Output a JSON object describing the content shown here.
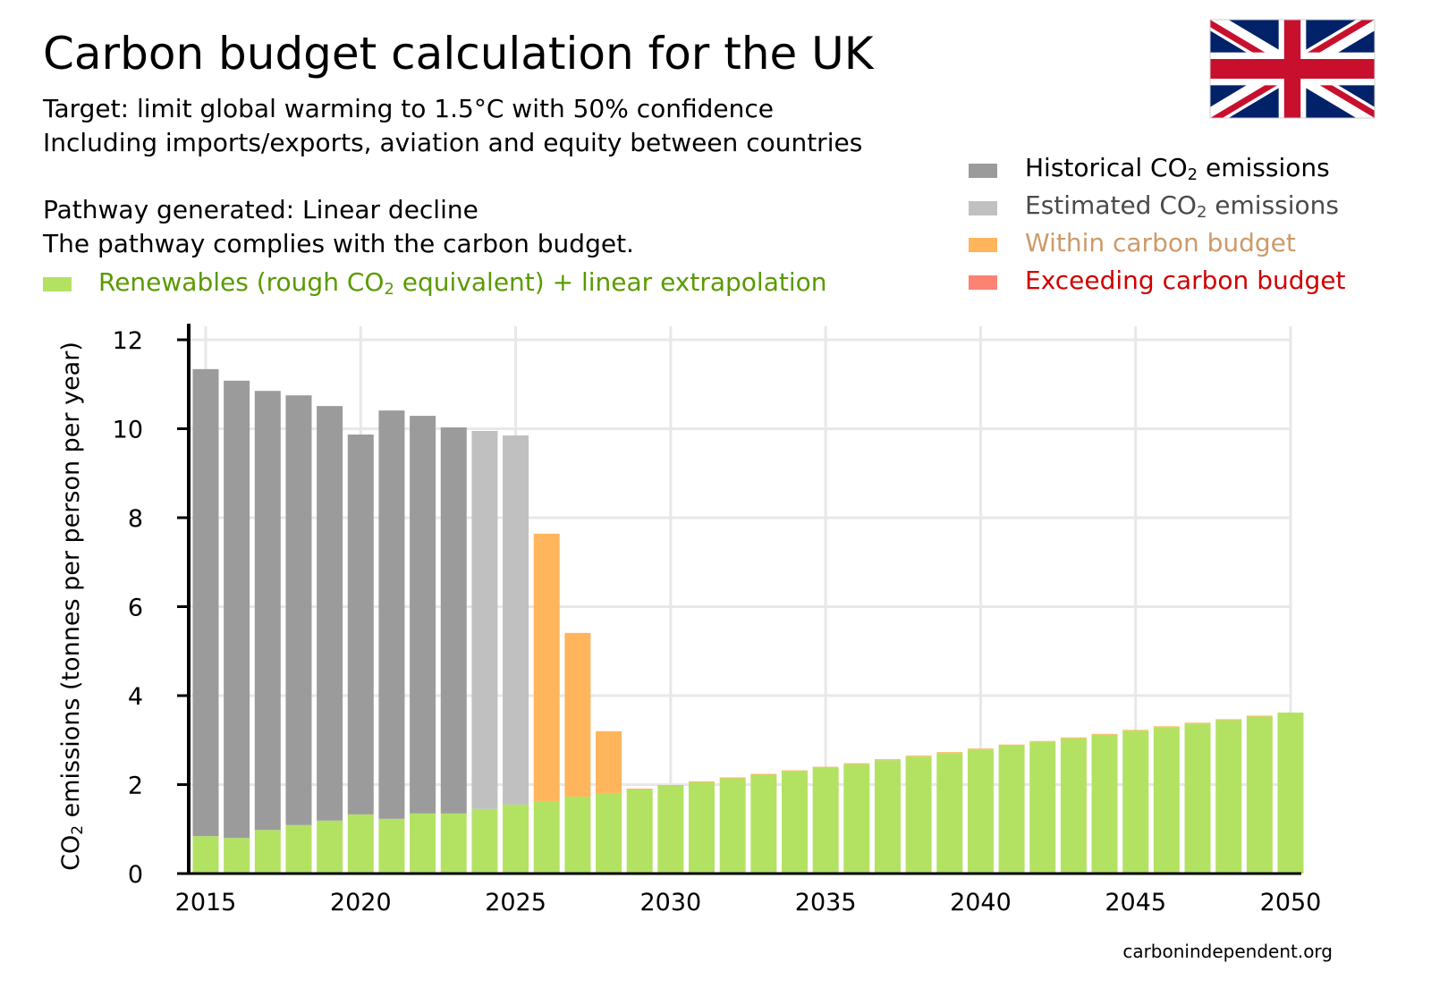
{
  "title": "Carbon budget calculation for the UK",
  "subtitle_1": "Target: limit global warming to 1.5°C with 50% confidence",
  "subtitle_2": "Including imports/exports, aviation and equity between countries",
  "pathway": "Pathway generated: Linear decline",
  "compliance": "The pathway complies with the carbon budget.",
  "footer": "carbonindependent.org",
  "colors": {
    "historical": "#9b9b9b",
    "estimated": "#c0c0c0",
    "within": "#feb55c",
    "exceeding": "#fc8272",
    "renewables": "#b3e263",
    "renewables_text": "#5a9a00",
    "within_text": "#cd9a6a",
    "exceeding_text": "#d00000",
    "estimated_text": "#4a4a4a"
  },
  "legend": {
    "historical": {
      "pre": "Historical CO",
      "sub": "2",
      "post": " emissions"
    },
    "estimated": {
      "pre": "Estimated CO",
      "sub": "2",
      "post": " emissions"
    },
    "within": "Within carbon budget",
    "exceeding": "Exceeding carbon budget",
    "renewables": {
      "pre": "Renewables (rough CO",
      "sub": "2",
      "post": " equivalent) + linear extrapolation"
    }
  },
  "chart_data": {
    "type": "bar",
    "stacked": true,
    "title": "Carbon budget calculation for the UK",
    "xlabel": "",
    "ylabel": {
      "pre": "CO",
      "sub": "2",
      "post": " emissions (tonnes per person per year)"
    },
    "ylim": [
      0,
      12
    ],
    "yticks": [
      "0",
      "2",
      "4",
      "6",
      "8",
      "10",
      "12"
    ],
    "xticks": [
      "2015",
      "2020",
      "2025",
      "2030",
      "2035",
      "2040",
      "2045",
      "2050"
    ],
    "grid": true,
    "legend_position": "top-right",
    "years": [
      2015,
      2016,
      2017,
      2018,
      2019,
      2020,
      2021,
      2022,
      2023,
      2024,
      2025,
      2026,
      2027,
      2028,
      2029,
      2030,
      2031,
      2032,
      2033,
      2034,
      2035,
      2036,
      2037,
      2038,
      2039,
      2040,
      2041,
      2042,
      2043,
      2044,
      2045,
      2046,
      2047,
      2048,
      2049,
      2050
    ],
    "series": [
      {
        "name": "Renewables",
        "key": "renewables",
        "values": [
          0.84,
          0.8,
          0.98,
          1.09,
          1.19,
          1.33,
          1.23,
          1.35,
          1.35,
          1.45,
          1.55,
          1.63,
          1.73,
          1.81,
          1.89,
          1.97,
          2.05,
          2.14,
          2.22,
          2.3,
          2.38,
          2.46,
          2.55,
          2.63,
          2.71,
          2.79,
          2.88,
          2.96,
          3.04,
          3.12,
          3.21,
          3.29,
          3.37,
          3.45,
          3.53,
          3.62
        ]
      },
      {
        "name": "Historical CO2 emissions",
        "key": "historical",
        "values": [
          10.5,
          10.28,
          9.87,
          9.66,
          9.32,
          8.54,
          9.18,
          8.94,
          8.68,
          0,
          0,
          0,
          0,
          0,
          0,
          0,
          0,
          0,
          0,
          0,
          0,
          0,
          0,
          0,
          0,
          0,
          0,
          0,
          0,
          0,
          0,
          0,
          0,
          0,
          0,
          0
        ]
      },
      {
        "name": "Estimated CO2 emissions",
        "key": "estimated",
        "values": [
          0,
          0,
          0,
          0,
          0,
          0,
          0,
          0,
          0,
          8.5,
          8.3,
          0,
          0,
          0,
          0,
          0,
          0,
          0,
          0,
          0,
          0,
          0,
          0,
          0,
          0,
          0,
          0,
          0,
          0,
          0,
          0,
          0,
          0,
          0,
          0,
          0
        ]
      },
      {
        "name": "Within carbon budget",
        "key": "within",
        "values": [
          0,
          0,
          0,
          0,
          0,
          0,
          0,
          0,
          0,
          0,
          0,
          6.01,
          3.68,
          1.39,
          0.02,
          0.02,
          0.02,
          0.02,
          0.02,
          0.02,
          0.02,
          0.02,
          0.02,
          0.02,
          0.02,
          0.02,
          0.02,
          0.02,
          0.02,
          0.02,
          0.02,
          0.02,
          0.02,
          0.02,
          0.02,
          0
        ]
      },
      {
        "name": "Exceeding carbon budget",
        "key": "exceeding",
        "values": [
          0,
          0,
          0,
          0,
          0,
          0,
          0,
          0,
          0,
          0,
          0,
          0,
          0,
          0,
          0,
          0,
          0,
          0,
          0,
          0,
          0,
          0,
          0,
          0,
          0,
          0,
          0,
          0,
          0,
          0,
          0,
          0,
          0,
          0,
          0,
          0
        ]
      }
    ]
  }
}
